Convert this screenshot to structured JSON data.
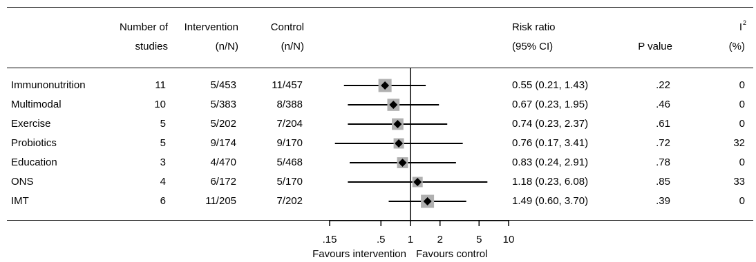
{
  "columns": {
    "studies": [
      "Number of",
      "studies"
    ],
    "intervention": [
      "Intervention",
      "(n/N)"
    ],
    "control": [
      "Control",
      "(n/N)"
    ],
    "rr": [
      "Risk ratio",
      "(95% CI)"
    ],
    "pvalue": "P value",
    "i2": [
      "I",
      "2",
      "(%)"
    ]
  },
  "chart_data": {
    "type": "forest",
    "x_scale": "log",
    "x_ticks": [
      0.15,
      0.5,
      1,
      2,
      5,
      10
    ],
    "x_tick_labels": [
      ".15",
      ".5",
      "1",
      "2",
      "5",
      "10"
    ],
    "x_range": [
      0.15,
      10
    ],
    "reference_line": 1,
    "favours_left": "Favours intervention",
    "favours_right": "Favours control",
    "rows": [
      {
        "label": "Immunonutrition",
        "studies": "11",
        "intervention": "5/453",
        "control": "11/457",
        "rr": 0.55,
        "lo": 0.21,
        "hi": 1.43,
        "rr_text": "0.55 (0.21, 1.43)",
        "p": ".22",
        "i2": "0",
        "weight": 1.0
      },
      {
        "label": "Multimodal",
        "studies": "10",
        "intervention": "5/383",
        "control": "8/388",
        "rr": 0.67,
        "lo": 0.23,
        "hi": 1.95,
        "rr_text": "0.67 (0.23, 1.95)",
        "p": ".46",
        "i2": "0",
        "weight": 0.85
      },
      {
        "label": "Exercise",
        "studies": "5",
        "intervention": "5/202",
        "control": "7/204",
        "rr": 0.74,
        "lo": 0.23,
        "hi": 2.37,
        "rr_text": "0.74 (0.23, 2.37)",
        "p": ".61",
        "i2": "0",
        "weight": 0.75
      },
      {
        "label": "Probiotics",
        "studies": "5",
        "intervention": "9/174",
        "control": "9/170",
        "rr": 0.76,
        "lo": 0.17,
        "hi": 3.41,
        "rr_text": "0.76 (0.17, 3.41)",
        "p": ".72",
        "i2": "32",
        "weight": 0.55
      },
      {
        "label": "Education",
        "studies": "3",
        "intervention": "4/470",
        "control": "5/468",
        "rr": 0.83,
        "lo": 0.24,
        "hi": 2.91,
        "rr_text": "0.83 (0.24, 2.91)",
        "p": ".78",
        "i2": "0",
        "weight": 0.65
      },
      {
        "label": "ONS",
        "studies": "4",
        "intervention": "6/172",
        "control": "5/170",
        "rr": 1.18,
        "lo": 0.23,
        "hi": 6.08,
        "rr_text": "1.18 (0.23, 6.08)",
        "p": ".85",
        "i2": "33",
        "weight": 0.55
      },
      {
        "label": "IMT",
        "studies": "6",
        "intervention": "11/205",
        "control": "7/202",
        "rr": 1.49,
        "lo": 0.6,
        "hi": 3.7,
        "rr_text": "1.49 (0.60, 3.70)",
        "p": ".39",
        "i2": "0",
        "weight": 1.0
      }
    ]
  },
  "colors": {
    "box": "#b0b0b0",
    "line": "#000000",
    "diamond": "#000000"
  }
}
